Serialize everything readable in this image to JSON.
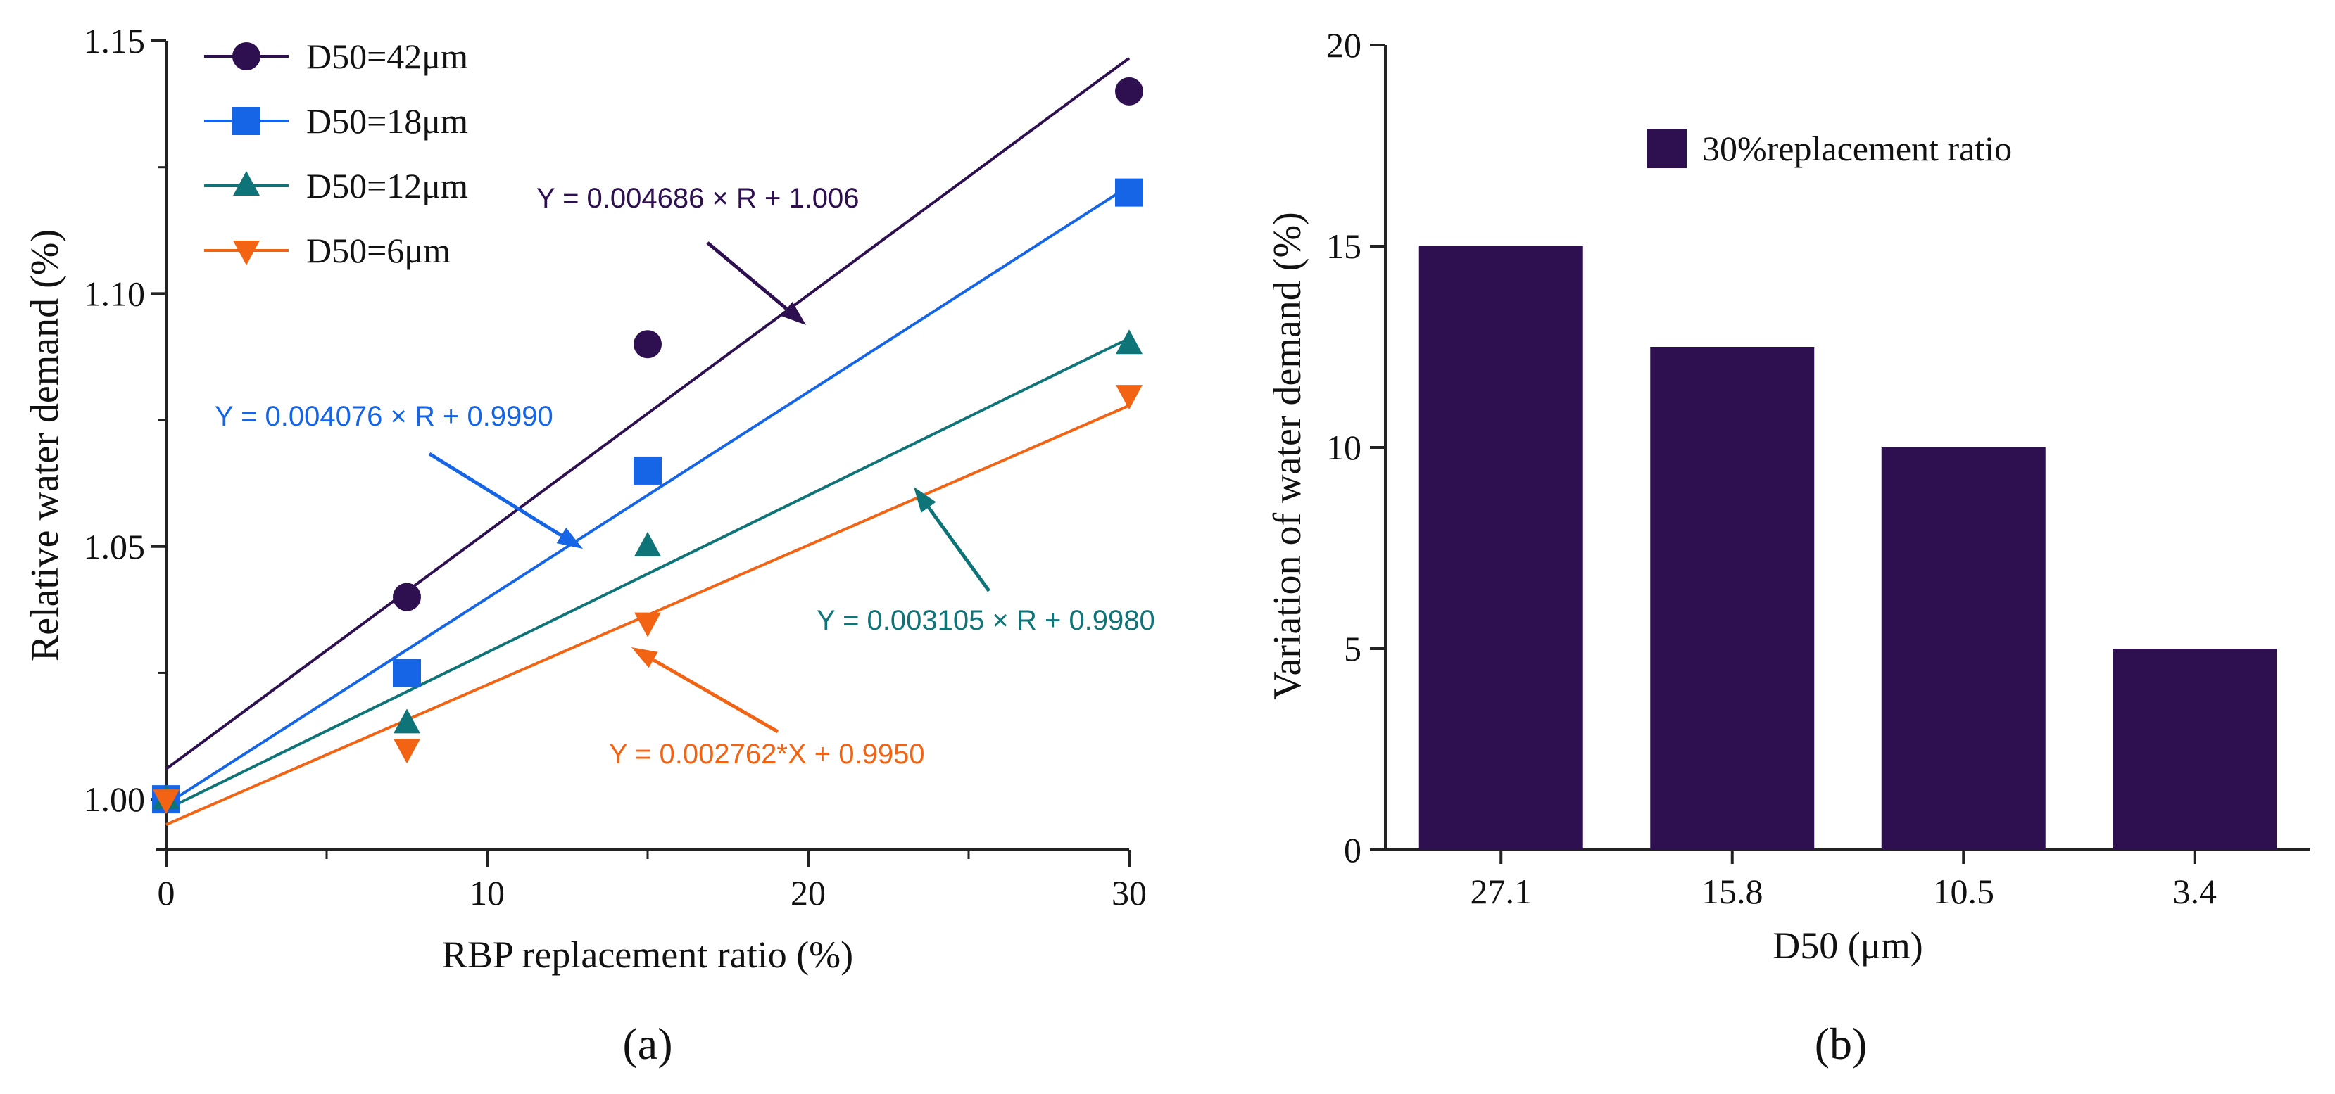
{
  "chart_data": [
    {
      "type": "scatter",
      "panel_label": "(a)",
      "xlabel": "RBP replacement  ratio (%)",
      "ylabel": "Relative water demand (%)",
      "xlim": [
        0,
        30
      ],
      "ylim": [
        0.99,
        1.15
      ],
      "xticks": [
        0,
        10,
        20,
        30
      ],
      "yticks": [
        1.0,
        1.05,
        1.1,
        1.15
      ],
      "ytick_labels": [
        "1.00",
        "1.05",
        "1.10",
        "1.15"
      ],
      "legend_position": "top-left",
      "series": [
        {
          "name": "D50=42μm",
          "marker": "circle",
          "color": "#2e1050",
          "x": [
            0,
            7.5,
            15,
            30
          ],
          "y": [
            1.0,
            1.04,
            1.09,
            1.14
          ],
          "fit": {
            "slope": 0.004686,
            "intercept": 1.006,
            "label": "Y = 0.004686 × R + 1.006"
          }
        },
        {
          "name": "D50=18μm",
          "marker": "square",
          "color": "#1565e6",
          "x": [
            0,
            7.5,
            15,
            30
          ],
          "y": [
            1.0,
            1.025,
            1.065,
            1.12
          ],
          "fit": {
            "slope": 0.004076,
            "intercept": 0.999,
            "label": "Y = 0.004076 × R + 0.9990"
          }
        },
        {
          "name": "D50=12μm",
          "marker": "triangle-up",
          "color": "#0f7478",
          "x": [
            0,
            7.5,
            15,
            30
          ],
          "y": [
            1.0,
            1.015,
            1.05,
            1.09
          ],
          "fit": {
            "slope": 0.003105,
            "intercept": 0.998,
            "label": "Y = 0.003105 × R + 0.9980"
          }
        },
        {
          "name": "D50=6μm",
          "marker": "triangle-down",
          "color": "#f26414",
          "x": [
            0,
            7.5,
            15,
            30
          ],
          "y": [
            1.0,
            1.01,
            1.035,
            1.08
          ],
          "fit": {
            "slope": 0.002762,
            "intercept": 0.995,
            "label": "Y = 0.002762*X + 0.9950"
          }
        }
      ]
    },
    {
      "type": "bar",
      "panel_label": "(b)",
      "xlabel": "D50 (μm)",
      "ylabel": "Variation of water demand (%)",
      "categories": [
        "27.1",
        "15.8",
        "10.5",
        "3.4"
      ],
      "series": [
        {
          "name": "30%replacement ratio",
          "values": [
            15,
            12.5,
            10,
            5
          ],
          "color": "#2e1050"
        }
      ],
      "ylim": [
        0,
        20
      ],
      "yticks": [
        0,
        5,
        10,
        15,
        20
      ],
      "legend_position": "top-right"
    }
  ]
}
